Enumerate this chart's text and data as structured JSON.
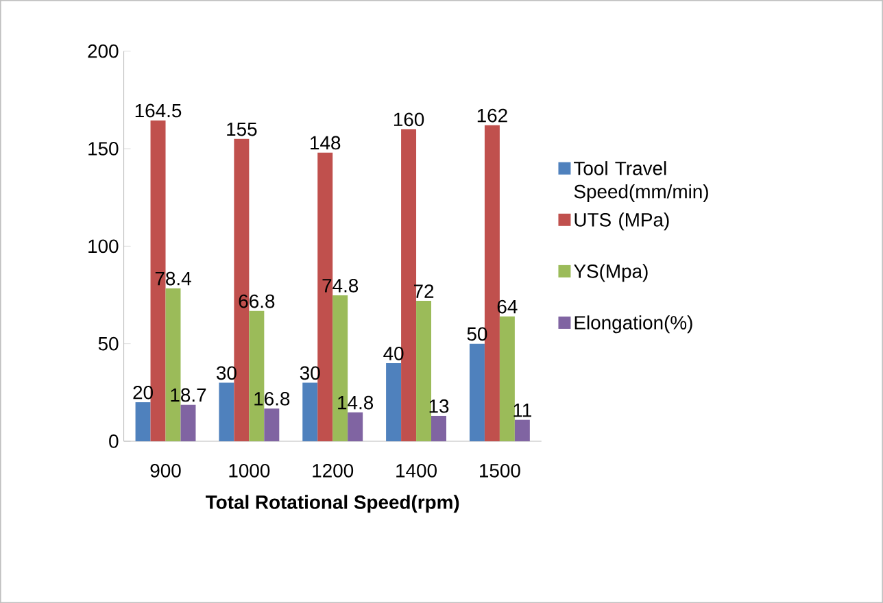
{
  "chart_data": {
    "type": "bar",
    "xlabel": "**Total Rotational Speed(rpm)**",
    "categories": [
      "900",
      "1000",
      "1200",
      "1400",
      "1500"
    ],
    "series": [
      {
        "name": "Tool Travel Speed(mm/min)",
        "color": "#4f81bd",
        "values": [
          20,
          30,
          30,
          40,
          50
        ]
      },
      {
        "name": "UTS (MPa)",
        "color": "#c0504d",
        "values": [
          164.5,
          155,
          148,
          160,
          162
        ]
      },
      {
        "name": "YS(Mpa)",
        "color": "#9bbb59",
        "values": [
          78.4,
          66.8,
          74.8,
          72,
          64
        ]
      },
      {
        "name": "Elongation(%)",
        "color": "#8064a2",
        "values": [
          18.7,
          16.8,
          14.8,
          13,
          11
        ]
      }
    ],
    "ylim": [
      0,
      200
    ],
    "yticks": [
      0,
      50,
      100,
      150,
      200
    ],
    "grid": false,
    "legend": "right",
    "data_labels": true
  }
}
